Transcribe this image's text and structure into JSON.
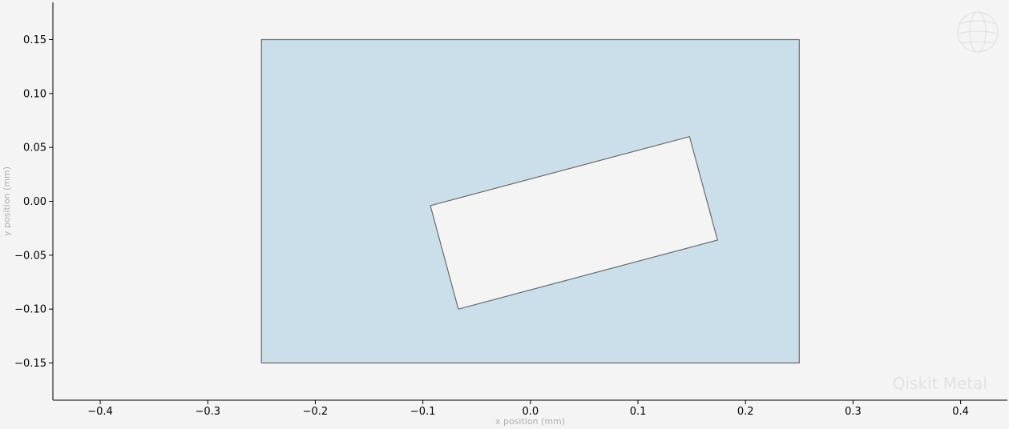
{
  "chart_data": {
    "type": "polygon",
    "xlabel": "x position (mm)",
    "ylabel": "y position (mm)",
    "xlim": [
      -0.444,
      0.4435
    ],
    "ylim": [
      -0.1845,
      0.1845
    ],
    "xticks": [
      -0.4,
      -0.3,
      -0.2,
      -0.1,
      0.0,
      0.1,
      0.2,
      0.3,
      0.4
    ],
    "xtick_labels": [
      "−0.4",
      "−0.3",
      "−0.2",
      "−0.1",
      "0.0",
      "0.1",
      "0.2",
      "0.3",
      "0.4"
    ],
    "yticks": [
      0.15,
      0.1,
      0.05,
      0.0,
      -0.05,
      -0.1,
      -0.15
    ],
    "ytick_labels": [
      "0.15",
      "0.10",
      "0.05",
      "0.00",
      "−0.05",
      "−0.10",
      "−0.15"
    ],
    "grid": false,
    "polygons": [
      {
        "name": "",
        "points": [
          [
            -0.25,
            0.15
          ],
          [
            0.25,
            0.15
          ],
          [
            0.25,
            -0.15
          ],
          [
            -0.25,
            -0.15
          ]
        ],
        "fill": "#cbdfea",
        "stroke": "#6b6b6b"
      },
      {
        "name": "",
        "points": [
          [
            -0.093,
            -0.004
          ],
          [
            0.148,
            0.06
          ],
          [
            0.174,
            -0.036
          ],
          [
            -0.067,
            -0.1
          ]
        ],
        "fill": "#f4f4f4",
        "stroke": "#6b6b6b"
      }
    ]
  },
  "watermark": {
    "text": "Qiskit Metal",
    "icon": "globe-icon",
    "color": "#e2e2e2"
  }
}
